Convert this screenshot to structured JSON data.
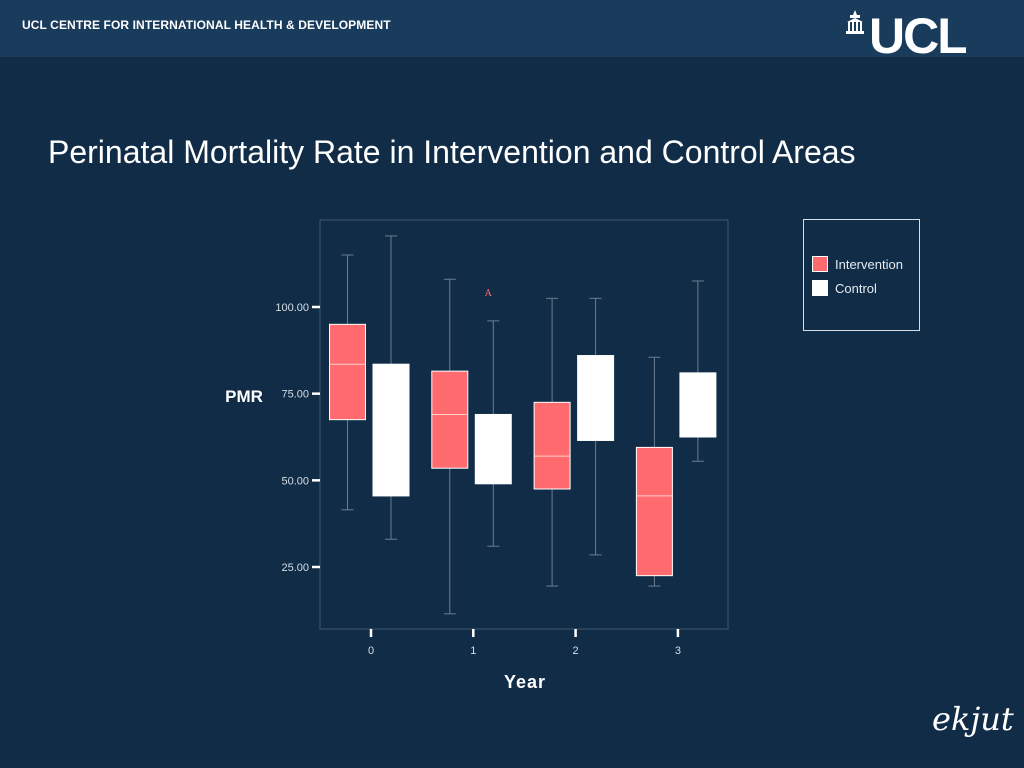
{
  "header": {
    "org_name": "UCL CENTRE FOR INTERNATIONAL HEALTH & DEVELOPMENT",
    "logo_text": "UCL"
  },
  "slide": {
    "title": "Perinatal Mortality Rate in Intervention and Control Areas"
  },
  "brand": {
    "text": "ekjut"
  },
  "chart_data": {
    "type": "boxplot",
    "title": "",
    "xlabel": "Year",
    "ylabel": "PMR",
    "categories": [
      "0",
      "1",
      "2",
      "3"
    ],
    "yticks": [
      "25.00",
      "50.00",
      "75.00",
      "100.00"
    ],
    "ylim": [
      6,
      125
    ],
    "legend_position": "right",
    "series": [
      {
        "name": "Intervention",
        "color": "#ff6b6e",
        "boxes": [
          {
            "category": "0",
            "min": 41.5,
            "q1": 67.5,
            "median": 83.5,
            "q3": 95,
            "max": 115
          },
          {
            "category": "1",
            "min": 11.5,
            "q1": 53.5,
            "median": 69,
            "q3": 81.5,
            "max": 108
          },
          {
            "category": "2",
            "min": 19.5,
            "q1": 47.5,
            "median": 57,
            "q3": 72.5,
            "max": 102.5
          },
          {
            "category": "3",
            "min": 19.5,
            "q1": 22.5,
            "median": 45.5,
            "q3": 59.5,
            "max": 85.5
          }
        ]
      },
      {
        "name": "Control",
        "color": "#ffffff",
        "boxes": [
          {
            "category": "0",
            "min": 33,
            "q1": 45.5,
            "median": 83.5,
            "q3": 83.5,
            "max": 120.5
          },
          {
            "category": "1",
            "min": 31,
            "q1": 49,
            "median": 69,
            "q3": 69,
            "max": 96
          },
          {
            "category": "2",
            "min": 28.5,
            "q1": 61.5,
            "median": 86,
            "q3": 86,
            "max": 102.5
          },
          {
            "category": "3",
            "min": 55.5,
            "q1": 62.5,
            "median": 81,
            "q3": 81,
            "max": 107.5
          }
        ]
      }
    ],
    "annotations": [
      {
        "text": "A",
        "category": "1",
        "y": 104,
        "color": "#ff6b6e"
      }
    ]
  }
}
